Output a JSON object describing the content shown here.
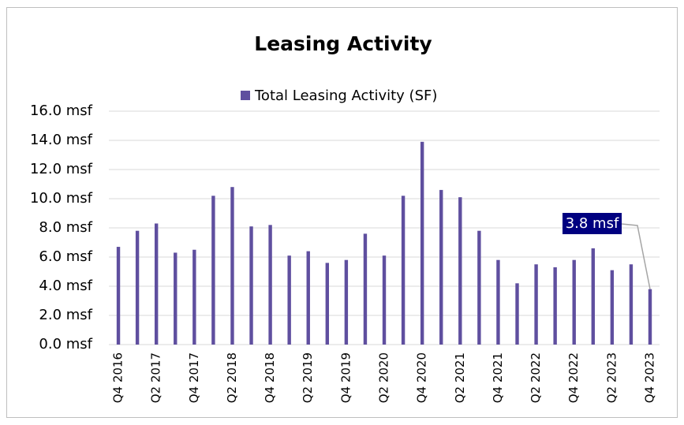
{
  "chart_data": {
    "type": "bar",
    "title": "Leasing Activity",
    "series": [
      {
        "name": "Total Leasing Activity (SF)",
        "color": "#5f4f9f",
        "values": [
          6.7,
          7.8,
          8.3,
          6.3,
          6.5,
          10.2,
          10.8,
          8.1,
          8.2,
          6.1,
          6.4,
          5.6,
          5.8,
          7.6,
          6.1,
          10.2,
          13.9,
          10.6,
          10.1,
          7.8,
          5.8,
          4.2,
          5.5,
          5.3,
          5.8,
          6.6,
          5.1,
          5.5,
          3.8
        ],
        "value_labels": [
          null,
          null,
          null,
          null,
          null,
          null,
          null,
          null,
          null,
          null,
          null,
          null,
          null,
          null,
          null,
          null,
          null,
          null,
          null,
          null,
          null,
          null,
          null,
          null,
          null,
          null,
          null,
          null,
          "3.8 msf"
        ]
      }
    ],
    "categories": [
      "Q4 2016",
      null,
      "Q2 2017",
      null,
      "Q4 2017",
      null,
      "Q2 2018",
      null,
      "Q4 2018",
      null,
      "Q2 2019",
      null,
      "Q4 2019",
      null,
      "Q2 2020",
      null,
      "Q4 2020",
      null,
      "Q2 2021",
      null,
      "Q4 2021",
      null,
      "Q2 2022",
      null,
      "Q4 2022",
      null,
      "Q2 2023",
      null,
      "Q4 2023"
    ],
    "ylim": [
      0,
      16
    ],
    "yticks": [
      {
        "value": 0,
        "label": "0.0 msf"
      },
      {
        "value": 2,
        "label": "2.0 msf"
      },
      {
        "value": 4,
        "label": "4.0 msf"
      },
      {
        "value": 6,
        "label": "6.0 msf"
      },
      {
        "value": 8,
        "label": "8.0 msf"
      },
      {
        "value": 10,
        "label": "10.0 msf"
      },
      {
        "value": 12,
        "label": "12.0 msf"
      },
      {
        "value": 14,
        "label": "14.0 msf"
      },
      {
        "value": 16,
        "label": "16.0 msf"
      }
    ],
    "grid": true,
    "legend": "top"
  }
}
